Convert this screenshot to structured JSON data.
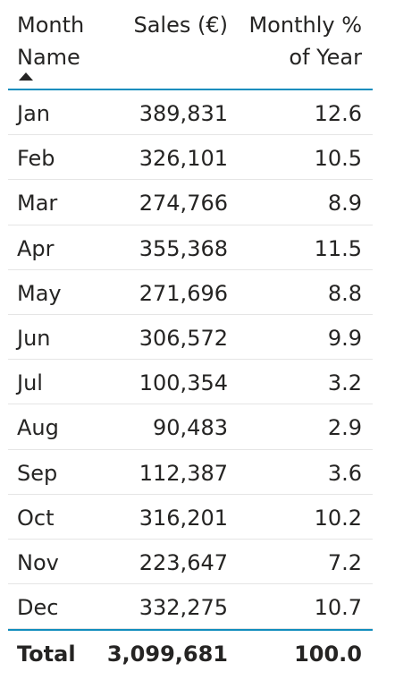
{
  "table": {
    "columns": {
      "month": [
        "Month",
        "Name"
      ],
      "sales": [
        "Sales (€)",
        ""
      ],
      "pct": [
        "Monthly %",
        "of Year"
      ]
    },
    "sort": {
      "column": "month",
      "direction": "ascending"
    },
    "rows": [
      {
        "month": "Jan",
        "sales": "389,831",
        "pct": "12.6"
      },
      {
        "month": "Feb",
        "sales": "326,101",
        "pct": "10.5"
      },
      {
        "month": "Mar",
        "sales": "274,766",
        "pct": "8.9"
      },
      {
        "month": "Apr",
        "sales": "355,368",
        "pct": "11.5"
      },
      {
        "month": "May",
        "sales": "271,696",
        "pct": "8.8"
      },
      {
        "month": "Jun",
        "sales": "306,572",
        "pct": "9.9"
      },
      {
        "month": "Jul",
        "sales": "100,354",
        "pct": "3.2"
      },
      {
        "month": "Aug",
        "sales": "90,483",
        "pct": "2.9"
      },
      {
        "month": "Sep",
        "sales": "112,387",
        "pct": "3.6"
      },
      {
        "month": "Oct",
        "sales": "316,201",
        "pct": "10.2"
      },
      {
        "month": "Nov",
        "sales": "223,647",
        "pct": "7.2"
      },
      {
        "month": "Dec",
        "sales": "332,275",
        "pct": "10.7"
      }
    ],
    "total": {
      "label": "Total",
      "sales": "3,099,681",
      "pct": "100.0"
    },
    "accent_color": "#118dbd"
  }
}
